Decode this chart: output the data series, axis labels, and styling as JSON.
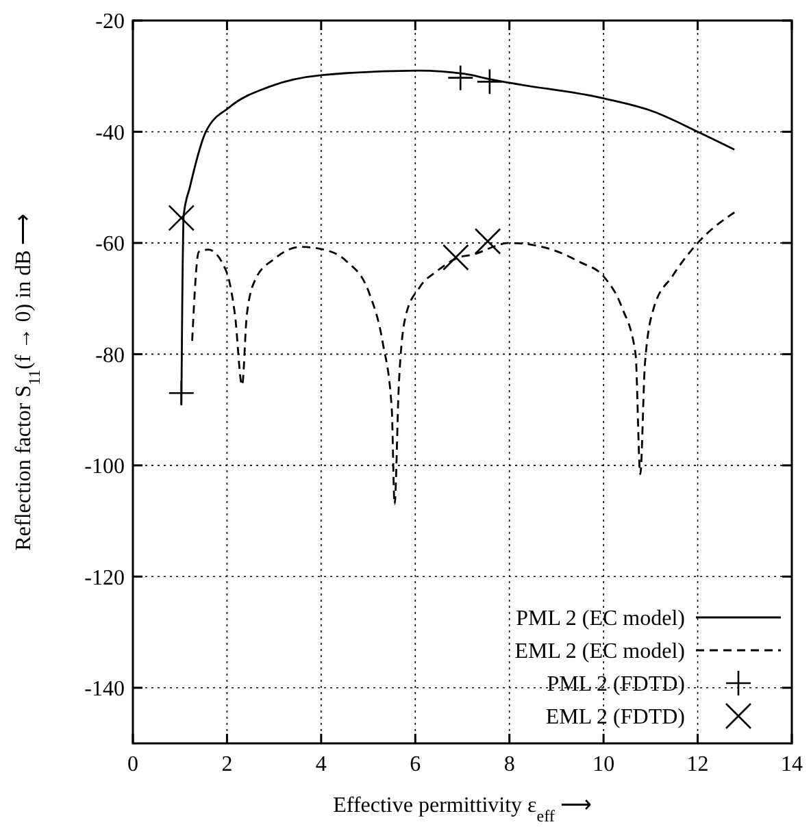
{
  "chart_data": {
    "type": "line",
    "xlabel": "Effective permittivity ε$_{eff}$ ⟶",
    "ylabel": "Reflection factor S$_{11}$(f → 0) in dB ⟶",
    "xlim": [
      0,
      14
    ],
    "ylim": [
      -150,
      -20
    ],
    "xticks": [
      0,
      2,
      4,
      6,
      8,
      10,
      12,
      14
    ],
    "yticks": [
      -140,
      -120,
      -100,
      -80,
      -60,
      -40,
      -20
    ],
    "grid": true,
    "legend": "bottom right",
    "series": [
      {
        "name": "PML 2 (EC model)",
        "color": "#000000",
        "line_style": "solid",
        "marker": "none",
        "x": [
          1.03,
          1.05,
          1.08,
          1.21,
          1.55,
          2.05,
          2.9,
          4.03,
          6.06,
          7.05,
          7.56,
          8,
          10,
          11.07,
          12,
          12.78
        ],
        "values": [
          -89,
          -70,
          -55,
          -50,
          -40,
          -35.6,
          -31.9,
          -29.8,
          -29,
          -29.6,
          -30.5,
          -31.2,
          -34,
          -36.4,
          -40,
          -43.2
        ]
      },
      {
        "name": "EML 2 (EC model)",
        "color": "#000000",
        "line_style": "dashed",
        "marker": "none",
        "x": [
          1.26,
          1.4,
          1.6,
          1.98,
          2.17,
          2.32,
          2.42,
          2.6,
          3.0,
          3.57,
          4.06,
          4.54,
          5.02,
          5.31,
          5.5,
          5.56,
          5.65,
          5.8,
          6.09,
          6.47,
          6.96,
          7.17,
          8,
          8.83,
          9.51,
          10,
          10.39,
          10.68,
          10.78,
          10.88,
          11.07,
          11.46,
          12,
          12.78
        ],
        "values": [
          -77.6,
          -61.6,
          -61.2,
          -65,
          -73,
          -85.6,
          -73,
          -66.6,
          -62.9,
          -60.7,
          -61.2,
          -63.3,
          -69,
          -78,
          -89.8,
          -107,
          -85.6,
          -73,
          -68,
          -65,
          -62.5,
          -62.2,
          -60,
          -61,
          -63.5,
          -66,
          -71.6,
          -80,
          -101.6,
          -81.6,
          -71.6,
          -66,
          -60,
          -54.5
        ]
      },
      {
        "name": "PML 2 (FDTD)",
        "color": "#000000",
        "type": "scatter",
        "marker": "cross",
        "x": [
          1.03,
          6.96,
          7.58
        ],
        "values": [
          -87,
          -30.3,
          -31
        ]
      },
      {
        "name": "EML 2 (FDTD)",
        "color": "#000000",
        "type": "scatter",
        "marker": "x",
        "x": [
          1.03,
          6.86,
          7.54
        ],
        "values": [
          -55.5,
          -62.6,
          -59.7
        ]
      }
    ]
  }
}
